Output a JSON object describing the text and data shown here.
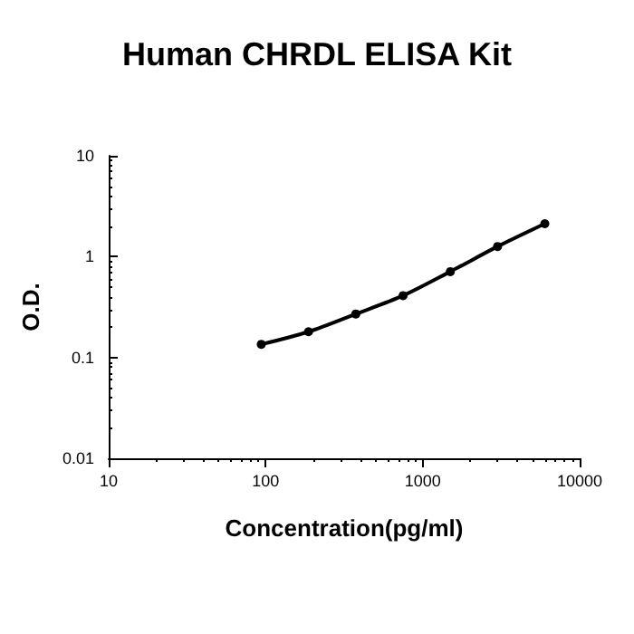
{
  "chart_data": {
    "type": "line",
    "title": "Human CHRDL ELISA Kit",
    "xlabel": "Concentration(pg/ml)",
    "ylabel": "O.D.",
    "x": [
      93.75,
      187.5,
      375,
      750,
      1500,
      3000,
      6000
    ],
    "series": [
      {
        "color": "#000000",
        "values": [
          0.135,
          0.18,
          0.27,
          0.41,
          0.71,
          1.26,
          2.12
        ]
      }
    ],
    "log": "xy",
    "xlim": [
      10,
      10000
    ],
    "xticks": [
      10,
      100,
      1000,
      10000
    ],
    "ylim": [
      0.01,
      10
    ],
    "yticks": [
      0.01,
      0.1,
      1,
      10
    ],
    "marker": "circle",
    "line_style": "solid"
  }
}
